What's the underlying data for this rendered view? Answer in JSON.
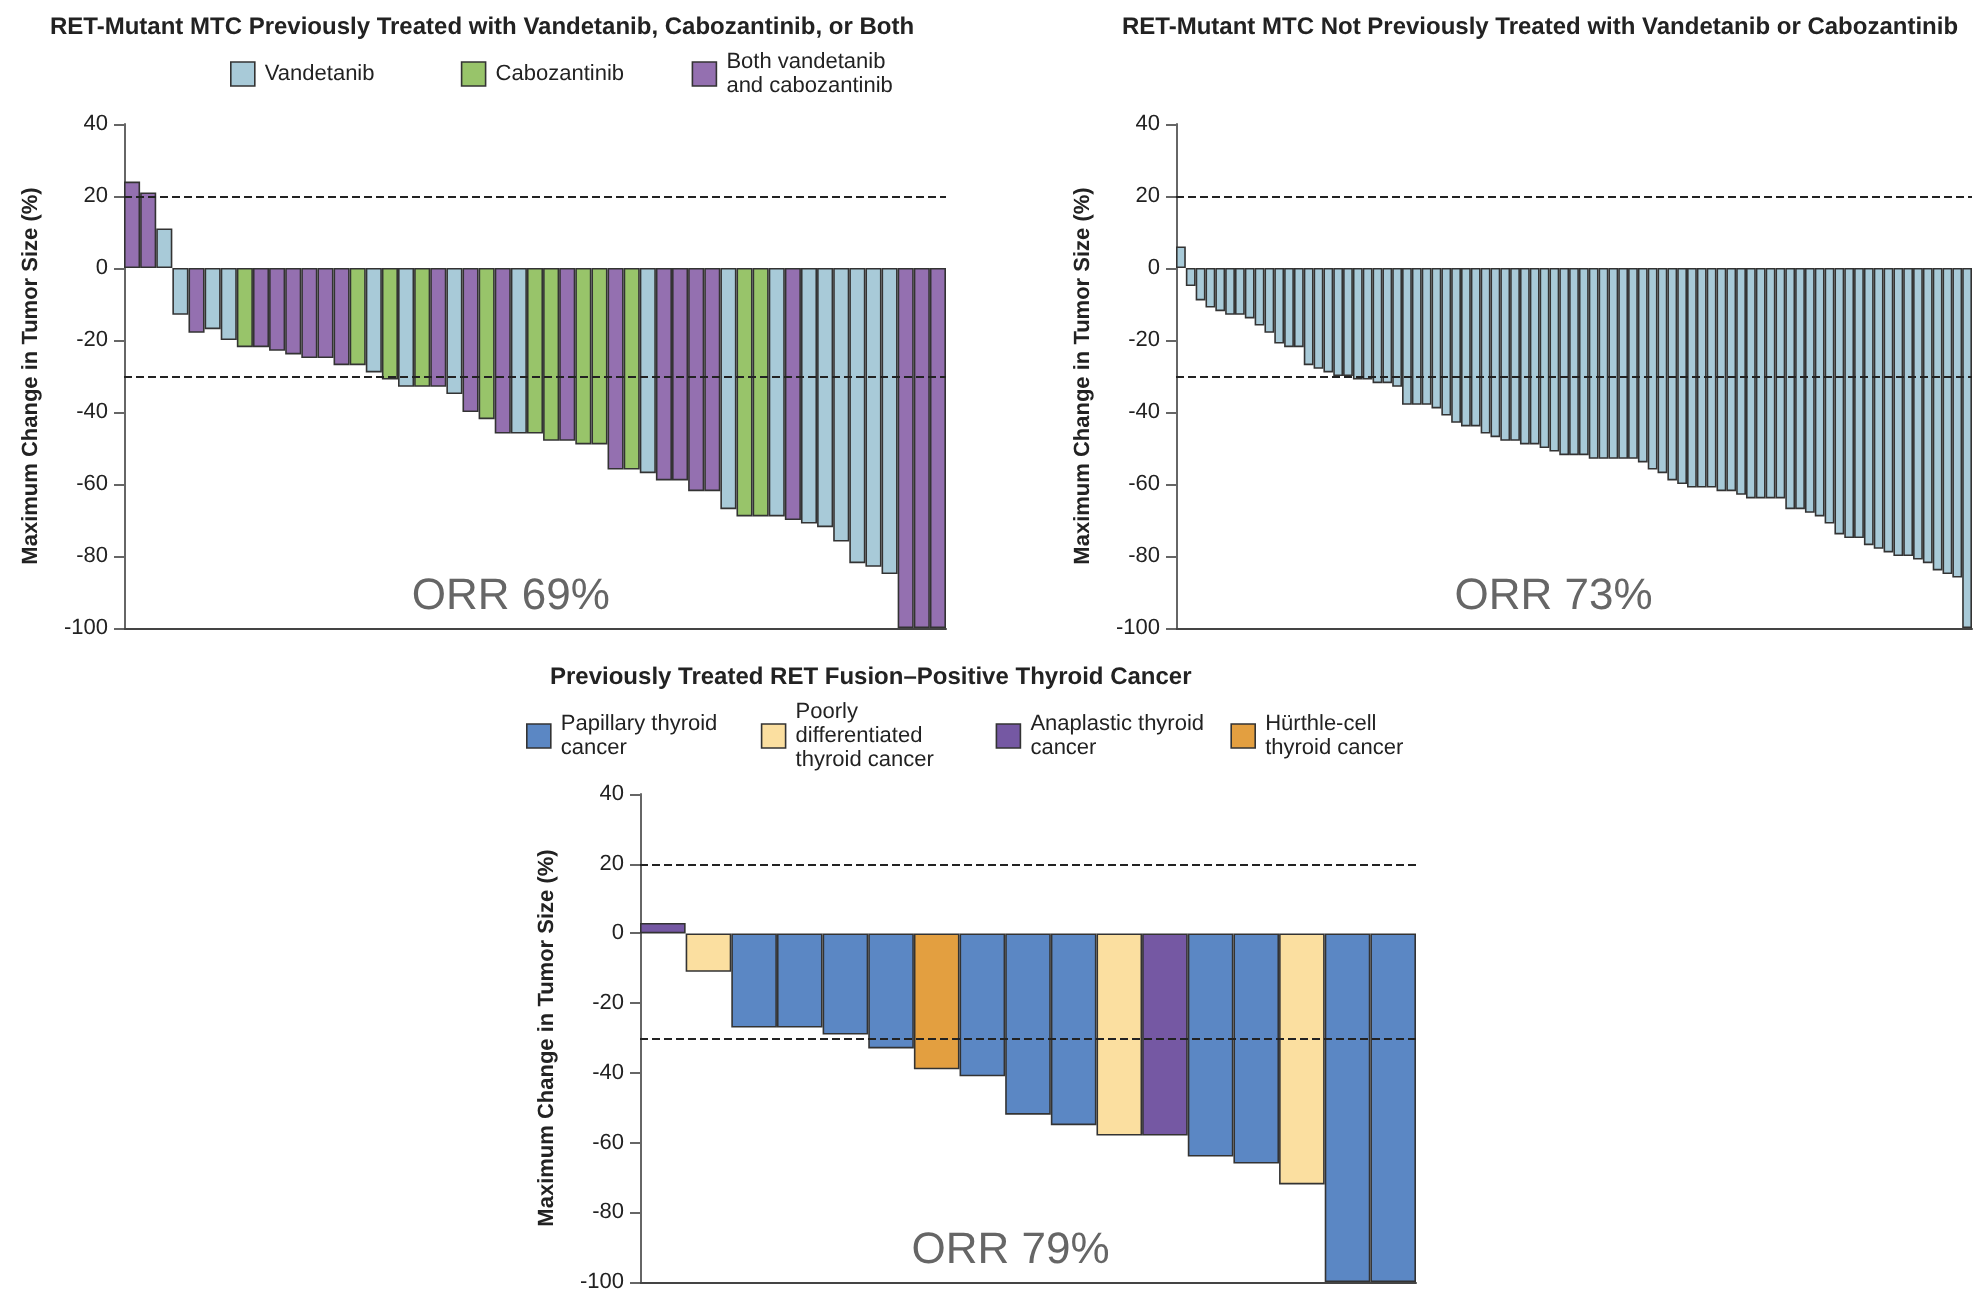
{
  "chart_data": [
    {
      "type": "bar",
      "title": "RET-Mutant MTC Previously Treated with Vandetanib, Cabozantinib, or Both",
      "ylabel": "Maximum Change in Tumor Size (%)",
      "legend": "top",
      "tick_labels": "y",
      "ylim": [
        -100,
        40
      ],
      "yticks": [
        -100,
        -80,
        -60,
        -40,
        -20,
        0,
        20,
        40
      ],
      "categories": [
        null,
        null,
        null,
        null,
        null,
        null,
        null,
        null,
        null,
        null,
        null,
        null,
        null,
        null,
        null,
        null,
        null,
        null,
        null,
        null,
        null,
        null,
        null,
        null,
        null,
        null,
        null,
        null,
        null,
        null,
        null,
        null,
        null,
        null,
        null,
        null,
        null,
        null,
        null,
        null,
        null,
        null,
        null,
        null,
        null,
        null,
        null,
        null,
        null,
        null,
        null
      ],
      "series": [
        {
          "name": "Vandetanib",
          "color": "#a8cad8",
          "values": [
            null,
            null,
            11,
            -13,
            null,
            -17,
            -20,
            null,
            null,
            null,
            null,
            null,
            null,
            null,
            null,
            -29,
            null,
            -33,
            null,
            null,
            -35,
            null,
            null,
            null,
            -46,
            null,
            null,
            null,
            null,
            null,
            null,
            null,
            -57,
            null,
            null,
            null,
            null,
            -67,
            null,
            null,
            -69,
            null,
            -71,
            -72,
            -76,
            -82,
            -83,
            -85,
            null,
            null,
            null
          ]
        },
        {
          "name": "Cabozantinib",
          "color": "#98c46a",
          "values": [
            null,
            null,
            null,
            null,
            null,
            null,
            null,
            -22,
            null,
            null,
            null,
            null,
            null,
            null,
            -27,
            null,
            -31,
            null,
            -33,
            null,
            null,
            null,
            -42,
            null,
            null,
            -46,
            -48,
            null,
            -49,
            -49,
            null,
            -56,
            null,
            null,
            null,
            null,
            null,
            null,
            -69,
            -69,
            null,
            null,
            null,
            null,
            null,
            null,
            null,
            null,
            null,
            null,
            null
          ]
        },
        {
          "name": "Both vandetanib and cabozantinib",
          "color": "#9470b0",
          "values": [
            24,
            21,
            null,
            null,
            -18,
            null,
            null,
            null,
            -22,
            -23,
            -24,
            -25,
            -25,
            -27,
            null,
            null,
            null,
            null,
            null,
            -33,
            null,
            -40,
            null,
            -46,
            null,
            null,
            null,
            -48,
            null,
            null,
            -56,
            null,
            null,
            -59,
            -59,
            -62,
            -62,
            null,
            null,
            null,
            null,
            -70,
            null,
            null,
            null,
            null,
            null,
            null,
            -100,
            -100,
            -100
          ]
        }
      ],
      "ref_lines": [
        {
          "axis": "y",
          "value": 20,
          "line_style": "dashed"
        },
        {
          "axis": "y",
          "value": -30,
          "line_style": "dashed"
        }
      ],
      "annotations": [
        "ORR 69%"
      ]
    },
    {
      "type": "bar",
      "title": "RET-Mutant MTC Not Previously Treated with Vandetanib or Cabozantinib",
      "ylabel": "Maximum Change in Tumor Size (%)",
      "tick_labels": "y",
      "ylim": [
        -100,
        40
      ],
      "yticks": [
        -100,
        -80,
        -60,
        -40,
        -20,
        0,
        20,
        40
      ],
      "categories": [
        null,
        null,
        null,
        null,
        null,
        null,
        null,
        null,
        null,
        null,
        null,
        null,
        null,
        null,
        null,
        null,
        null,
        null,
        null,
        null,
        null,
        null,
        null,
        null,
        null,
        null,
        null,
        null,
        null,
        null,
        null,
        null,
        null,
        null,
        null,
        null,
        null,
        null,
        null,
        null,
        null,
        null,
        null,
        null,
        null,
        null,
        null,
        null,
        null,
        null,
        null,
        null,
        null,
        null,
        null,
        null,
        null,
        null,
        null,
        null,
        null,
        null,
        null,
        null,
        null,
        null,
        null,
        null,
        null,
        null,
        null,
        null,
        null,
        null,
        null,
        null,
        null,
        null,
        null,
        null,
        null
      ],
      "series": [
        {
          "color": "#a8cad8",
          "values": [
            6,
            -5,
            -9,
            -11,
            -12,
            -13,
            -13,
            -14,
            -16,
            -18,
            -21,
            -22,
            -22,
            -27,
            -28,
            -29,
            -30,
            -30,
            -31,
            -31,
            -32,
            -32,
            -33,
            -38,
            -38,
            -38,
            -39,
            -41,
            -43,
            -44,
            -44,
            -46,
            -47,
            -48,
            -48,
            -49,
            -49,
            -50,
            -51,
            -52,
            -52,
            -52,
            -53,
            -53,
            -53,
            -53,
            -53,
            -54,
            -56,
            -57,
            -59,
            -60,
            -61,
            -61,
            -61,
            -62,
            -62,
            -63,
            -64,
            -64,
            -64,
            -64,
            -67,
            -67,
            -68,
            -69,
            -71,
            -74,
            -75,
            -75,
            -77,
            -78,
            -79,
            -80,
            -80,
            -81,
            -82,
            -84,
            -85,
            -86,
            -100
          ]
        }
      ],
      "ref_lines": [
        {
          "axis": "y",
          "value": 20,
          "line_style": "dashed"
        },
        {
          "axis": "y",
          "value": -30,
          "line_style": "dashed"
        }
      ],
      "annotations": [
        "ORR 73%"
      ]
    },
    {
      "type": "bar",
      "title": "Previously Treated RET Fusion–Positive Thyroid Cancer",
      "ylabel": "Maximum Change in Tumor Size (%)",
      "legend": "top",
      "tick_labels": "y",
      "ylim": [
        -100,
        40
      ],
      "yticks": [
        -100,
        -80,
        -60,
        -40,
        -20,
        0,
        20,
        40
      ],
      "categories": [
        null,
        null,
        null,
        null,
        null,
        null,
        null,
        null,
        null,
        null,
        null,
        null,
        null,
        null,
        null,
        null,
        null
      ],
      "series": [
        {
          "name": "Papillary thyroid cancer",
          "color": "#5b87c4",
          "values": [
            null,
            null,
            -27,
            -27,
            -29,
            -33,
            null,
            -41,
            -52,
            -55,
            null,
            null,
            -64,
            -66,
            null,
            -100,
            -100
          ]
        },
        {
          "name": "Poorly differentiated thyroid cancer",
          "color": "#fbdfa0",
          "values": [
            null,
            -11,
            null,
            null,
            null,
            null,
            null,
            null,
            null,
            null,
            -58,
            null,
            null,
            null,
            -72,
            null,
            null
          ]
        },
        {
          "name": "Anaplastic thyroid cancer",
          "color": "#7558a3",
          "values": [
            3,
            null,
            null,
            null,
            null,
            null,
            null,
            null,
            null,
            null,
            null,
            -58,
            null,
            null,
            null,
            null,
            null
          ]
        },
        {
          "name": "Hürthle-cell thyroid cancer",
          "color": "#e39f40",
          "values": [
            null,
            null,
            null,
            null,
            null,
            null,
            -39,
            null,
            null,
            null,
            null,
            null,
            null,
            null,
            null,
            null,
            null
          ]
        }
      ],
      "ref_lines": [
        {
          "axis": "y",
          "value": 20,
          "line_style": "dashed"
        },
        {
          "axis": "y",
          "value": -30,
          "line_style": "dashed"
        }
      ],
      "annotations": [
        "ORR 79%"
      ]
    }
  ]
}
